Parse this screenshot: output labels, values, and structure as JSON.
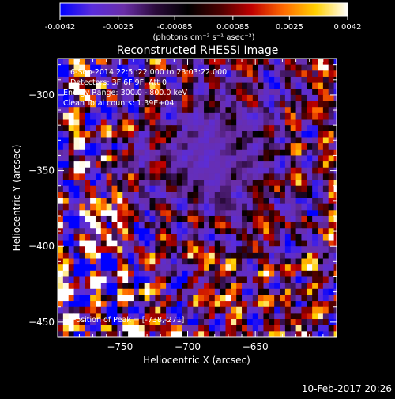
{
  "colorbar": {
    "tick_labels": [
      "-0.0042",
      "-0.0025",
      "-0.00085",
      "0.00085",
      "0.0025",
      "0.0042"
    ],
    "unit_label": "(photons cm⁻² s⁻¹ asec⁻²)",
    "range": [
      -0.0042,
      0.0042
    ],
    "stops": [
      "#0000ff",
      "#5a2ddc",
      "#6a2ea8",
      "#2a0a3a",
      "#000000",
      "#4a0000",
      "#c00000",
      "#ff6a00",
      "#ffd000",
      "#ffffff"
    ]
  },
  "footer": {
    "timestamp": "10-Feb-2017 20:26"
  },
  "chart_data": {
    "type": "heatmap",
    "title": "Reconstructed RHESSI Image",
    "xlabel": "Heliocentric X (arcsec)",
    "ylabel": "Heliocentric Y (arcsec)",
    "xlim": [
      -796,
      -590
    ],
    "ylim": [
      -460,
      -276
    ],
    "xticks": [
      -750,
      -700,
      -650
    ],
    "yticks": [
      -450,
      -400,
      -350,
      -300
    ],
    "annotations": [
      "6-Sep-2014 22:5 :22.000 to 23:03:22.000",
      "Detectors: 3F 6F 9F, Att 0",
      "Energy Range: 300.0 - 800.0 keV",
      "Clean    Total counts: 1.39E+04"
    ],
    "peak_label": "Position of Peak = [-738,-271]",
    "pixel_size_arcsec": 4
  }
}
